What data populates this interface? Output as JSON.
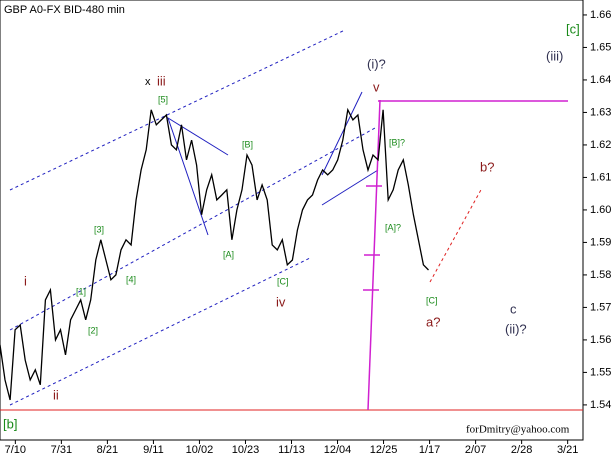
{
  "chart_data": {
    "type": "line",
    "title": "GBP A0-FX BID-480 min",
    "xlim": [
      -7,
      259
    ],
    "xticks": [
      {
        "value": 0,
        "label": "7/10"
      },
      {
        "value": 21,
        "label": "7/31"
      },
      {
        "value": 42,
        "label": "8/21"
      },
      {
        "value": 63,
        "label": "9/11"
      },
      {
        "value": 84,
        "label": "10/02"
      },
      {
        "value": 105,
        "label": "10/23"
      },
      {
        "value": 126,
        "label": "11/13"
      },
      {
        "value": 147,
        "label": "12/04"
      },
      {
        "value": 168,
        "label": "12/25"
      },
      {
        "value": 189,
        "label": "1/17"
      },
      {
        "value": 210,
        "label": "2/07"
      },
      {
        "value": 231,
        "label": "2/28"
      },
      {
        "value": 252,
        "label": "3/21"
      }
    ],
    "ylim": [
      1.5292,
      1.6646
    ],
    "yticks": [
      1.54,
      1.55,
      1.56,
      1.57,
      1.58,
      1.59,
      {
        "value": 1.6,
        "label": "1.60"
      },
      1.61,
      1.62,
      1.63,
      1.64,
      1.65,
      1.66
    ],
    "series": [
      {
        "color": "#000000",
        "x": [
          -7,
          -4.7,
          -2.4,
          -0.1,
          2.2,
          4.5,
          6.8,
          9.1,
          11.4,
          13.7,
          16,
          18.3,
          20.6,
          22.9,
          25.2,
          27.5,
          29.8,
          32.1,
          34.4,
          36.7,
          39,
          41.3,
          43.6,
          45.9,
          48.2,
          50.5,
          52.8,
          55.1,
          57.4,
          59.7,
          62,
          64.3,
          66.6,
          68.9,
          71.2,
          73.5,
          75.8,
          78.1,
          80.4,
          82.7,
          85,
          87.3,
          89.6,
          91.9,
          94.2,
          96.5,
          98.8,
          101.1,
          103.4,
          105.7,
          108,
          110.3,
          112.6,
          114.9,
          117.2,
          119.5,
          121.8,
          124.1,
          126.4,
          128.7,
          131,
          133.3,
          135.6,
          137.9,
          140.2,
          142.5,
          144.8,
          147.1,
          149.4,
          151.7,
          154,
          156.3,
          158.6,
          160.9,
          163.2,
          165.5,
          167.8,
          170.1,
          172.4,
          174.7,
          177,
          179.3,
          181.6,
          183.9,
          186.2,
          188.5
        ],
        "values": [
          1.5585,
          1.5477,
          1.5415,
          1.5631,
          1.5646,
          1.5538,
          1.5477,
          1.5508,
          1.5462,
          1.5723,
          1.5754,
          1.56,
          1.5631,
          1.5554,
          1.5662,
          1.5692,
          1.5723,
          1.5662,
          1.5723,
          1.5846,
          1.5908,
          1.5846,
          1.5785,
          1.58,
          1.5877,
          1.5908,
          1.5892,
          1.6031,
          1.6123,
          1.6185,
          1.6308,
          1.6262,
          1.6277,
          1.6292,
          1.62,
          1.6185,
          1.6262,
          1.6154,
          1.6215,
          1.6138,
          1.5985,
          1.6062,
          1.6108,
          1.6031,
          1.6046,
          1.6062,
          1.5908,
          1.6,
          1.6062,
          1.6169,
          1.6138,
          1.6031,
          1.6077,
          1.6031,
          1.5892,
          1.5877,
          1.5908,
          1.5831,
          1.5846,
          1.5938,
          1.6,
          1.6031,
          1.6046,
          1.6092,
          1.6123,
          1.6108,
          1.6123,
          1.6154,
          1.6215,
          1.6308,
          1.6277,
          1.6292,
          1.6185,
          1.6123,
          1.6169,
          1.6154,
          1.6308,
          1.6031,
          1.6062,
          1.6123,
          1.6154,
          1.6077,
          1.5985,
          1.5908,
          1.5831,
          1.5815
        ]
      }
    ],
    "annotations": [
      "[c]",
      "(iii)",
      "x",
      "iii",
      "[5]",
      "(i)?",
      "v",
      "[B]",
      "[B]?",
      "b?",
      "i",
      "[3]",
      "[4]",
      "[1]",
      "[2]",
      "ii",
      "[A]",
      "[C]",
      "iv",
      "[A]?",
      "[C]",
      "a?",
      "c",
      "(ii)?",
      "[b]",
      "forDmitry@yahoo.com"
    ]
  }
}
